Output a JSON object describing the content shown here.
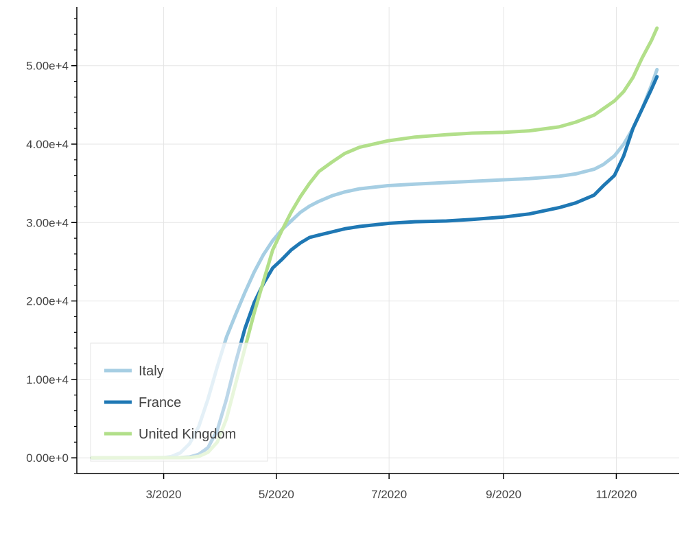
{
  "chart_data": {
    "type": "line",
    "title": "",
    "xlabel": "",
    "ylabel": "",
    "x_axis_type": "datetime",
    "x_range": [
      "2020-01-14",
      "2020-12-05"
    ],
    "y_range": [
      -2000,
      57500
    ],
    "x_ticks": [
      {
        "date": "2020-03-01",
        "label": "3/2020"
      },
      {
        "date": "2020-05-01",
        "label": "5/2020"
      },
      {
        "date": "2020-07-01",
        "label": "7/2020"
      },
      {
        "date": "2020-09-01",
        "label": "9/2020"
      },
      {
        "date": "2020-11-01",
        "label": "11/2020"
      }
    ],
    "y_ticks": [
      {
        "value": 0,
        "label": "0.00e+0"
      },
      {
        "value": 10000,
        "label": "1.00e+4"
      },
      {
        "value": 20000,
        "label": "2.00e+4"
      },
      {
        "value": 30000,
        "label": "3.00e+4"
      },
      {
        "value": 40000,
        "label": "4.00e+4"
      },
      {
        "value": 50000,
        "label": "5.00e+4"
      }
    ],
    "grid": true,
    "legend_position": "bottom-left",
    "series": [
      {
        "name": "Italy",
        "color": "#a6cee3",
        "points": [
          [
            "2020-01-22",
            0
          ],
          [
            "2020-02-21",
            0
          ],
          [
            "2020-03-01",
            30
          ],
          [
            "2020-03-05",
            150
          ],
          [
            "2020-03-10",
            630
          ],
          [
            "2020-03-15",
            1800
          ],
          [
            "2020-03-20",
            4000
          ],
          [
            "2020-03-25",
            7500
          ],
          [
            "2020-03-30",
            11600
          ],
          [
            "2020-04-04",
            15400
          ],
          [
            "2020-04-09",
            18300
          ],
          [
            "2020-04-14",
            21100
          ],
          [
            "2020-04-19",
            23700
          ],
          [
            "2020-04-24",
            25900
          ],
          [
            "2020-04-29",
            27700
          ],
          [
            "2020-05-04",
            29100
          ],
          [
            "2020-05-09",
            30200
          ],
          [
            "2020-05-14",
            31300
          ],
          [
            "2020-05-19",
            32100
          ],
          [
            "2020-05-24",
            32700
          ],
          [
            "2020-05-31",
            33400
          ],
          [
            "2020-06-07",
            33900
          ],
          [
            "2020-06-15",
            34300
          ],
          [
            "2020-06-30",
            34700
          ],
          [
            "2020-07-15",
            34900
          ],
          [
            "2020-08-01",
            35100
          ],
          [
            "2020-08-15",
            35250
          ],
          [
            "2020-09-01",
            35450
          ],
          [
            "2020-09-15",
            35600
          ],
          [
            "2020-10-01",
            35900
          ],
          [
            "2020-10-10",
            36200
          ],
          [
            "2020-10-20",
            36800
          ],
          [
            "2020-10-25",
            37400
          ],
          [
            "2020-10-31",
            38500
          ],
          [
            "2020-11-05",
            40000
          ],
          [
            "2020-11-10",
            42000
          ],
          [
            "2020-11-15",
            44500
          ],
          [
            "2020-11-20",
            47500
          ],
          [
            "2020-11-23",
            49500
          ]
        ]
      },
      {
        "name": "France",
        "color": "#1f78b4",
        "points": [
          [
            "2020-01-22",
            0
          ],
          [
            "2020-03-10",
            30
          ],
          [
            "2020-03-15",
            100
          ],
          [
            "2020-03-20",
            450
          ],
          [
            "2020-03-25",
            1300
          ],
          [
            "2020-03-30",
            3500
          ],
          [
            "2020-04-04",
            7500
          ],
          [
            "2020-04-09",
            12200
          ],
          [
            "2020-04-14",
            16500
          ],
          [
            "2020-04-19",
            19800
          ],
          [
            "2020-04-24",
            22200
          ],
          [
            "2020-04-29",
            24200
          ],
          [
            "2020-05-04",
            25300
          ],
          [
            "2020-05-09",
            26500
          ],
          [
            "2020-05-14",
            27400
          ],
          [
            "2020-05-19",
            28100
          ],
          [
            "2020-05-24",
            28400
          ],
          [
            "2020-05-31",
            28800
          ],
          [
            "2020-06-07",
            29200
          ],
          [
            "2020-06-15",
            29500
          ],
          [
            "2020-07-01",
            29900
          ],
          [
            "2020-07-15",
            30100
          ],
          [
            "2020-08-01",
            30200
          ],
          [
            "2020-08-15",
            30400
          ],
          [
            "2020-09-01",
            30700
          ],
          [
            "2020-09-15",
            31100
          ],
          [
            "2020-10-01",
            31900
          ],
          [
            "2020-10-10",
            32500
          ],
          [
            "2020-10-20",
            33500
          ],
          [
            "2020-10-25",
            34700
          ],
          [
            "2020-10-31",
            36000
          ],
          [
            "2020-11-05",
            38500
          ],
          [
            "2020-11-10",
            42000
          ],
          [
            "2020-11-15",
            44500
          ],
          [
            "2020-11-20",
            47000
          ],
          [
            "2020-11-23",
            48600
          ]
        ]
      },
      {
        "name": "United Kingdom",
        "color": "#b2df8a",
        "points": [
          [
            "2020-01-22",
            0
          ],
          [
            "2020-03-10",
            10
          ],
          [
            "2020-03-15",
            30
          ],
          [
            "2020-03-20",
            180
          ],
          [
            "2020-03-25",
            700
          ],
          [
            "2020-03-30",
            2000
          ],
          [
            "2020-04-04",
            5000
          ],
          [
            "2020-04-09",
            9500
          ],
          [
            "2020-04-14",
            14000
          ],
          [
            "2020-04-19",
            18500
          ],
          [
            "2020-04-24",
            22500
          ],
          [
            "2020-04-29",
            26500
          ],
          [
            "2020-05-04",
            29000
          ],
          [
            "2020-05-09",
            31300
          ],
          [
            "2020-05-14",
            33300
          ],
          [
            "2020-05-19",
            35000
          ],
          [
            "2020-05-24",
            36500
          ],
          [
            "2020-05-31",
            37700
          ],
          [
            "2020-06-07",
            38800
          ],
          [
            "2020-06-15",
            39600
          ],
          [
            "2020-06-30",
            40400
          ],
          [
            "2020-07-15",
            40900
          ],
          [
            "2020-08-01",
            41200
          ],
          [
            "2020-08-15",
            41400
          ],
          [
            "2020-09-01",
            41500
          ],
          [
            "2020-09-15",
            41700
          ],
          [
            "2020-10-01",
            42200
          ],
          [
            "2020-10-10",
            42800
          ],
          [
            "2020-10-20",
            43700
          ],
          [
            "2020-10-31",
            45500
          ],
          [
            "2020-11-05",
            46700
          ],
          [
            "2020-11-10",
            48500
          ],
          [
            "2020-11-15",
            51000
          ],
          [
            "2020-11-20",
            53200
          ],
          [
            "2020-11-23",
            54800
          ]
        ]
      }
    ]
  }
}
